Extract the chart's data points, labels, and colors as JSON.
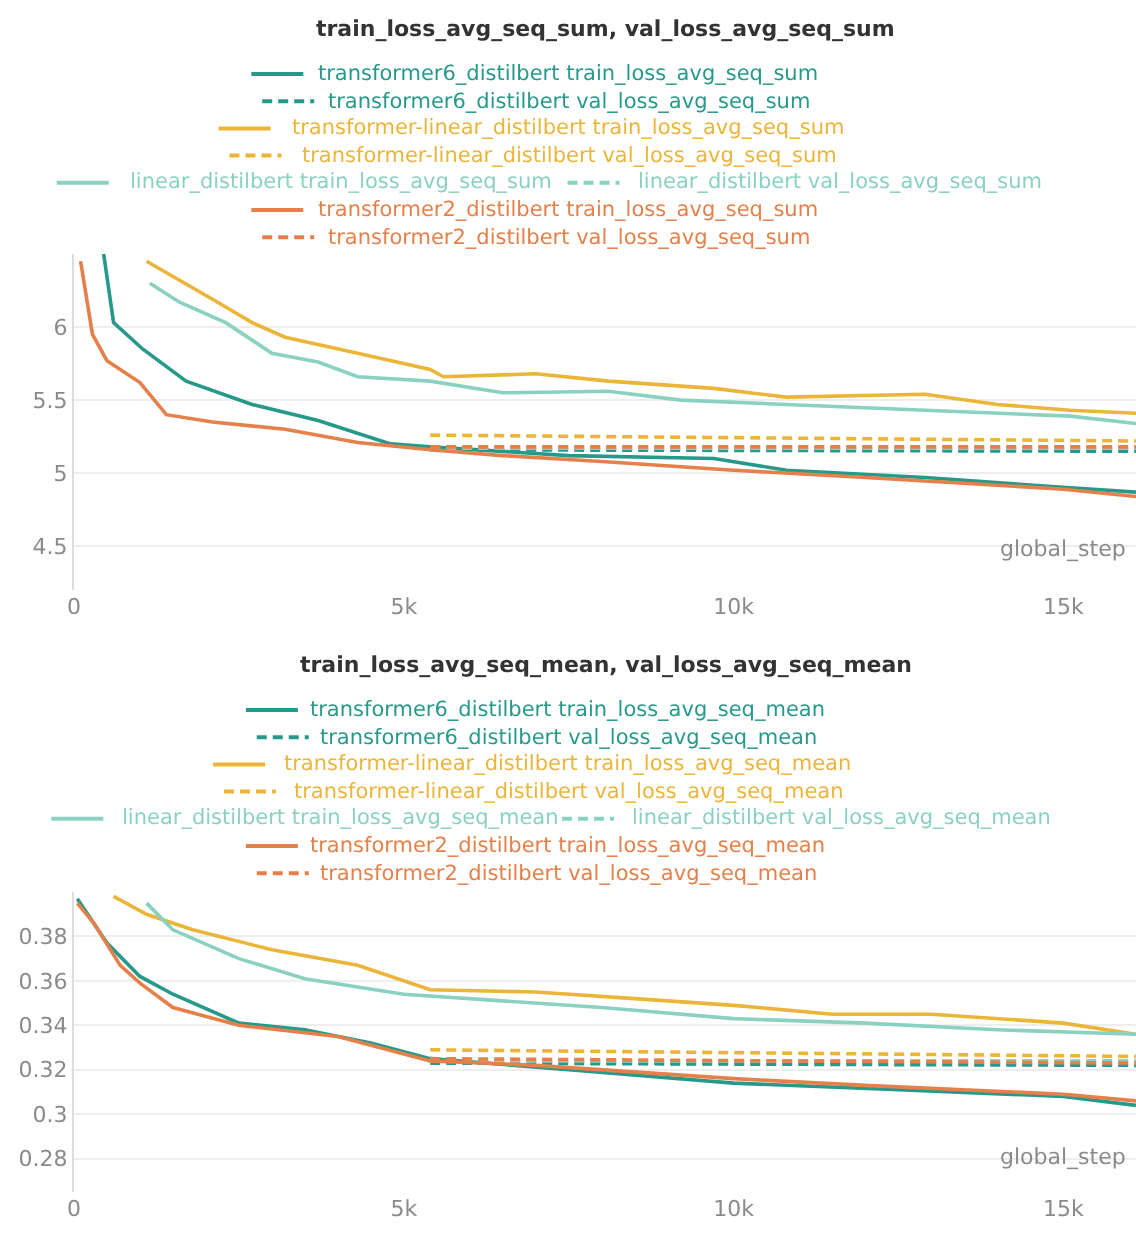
{
  "chart_data": [
    {
      "type": "line",
      "title": "train_loss_avg_seq_sum, val_loss_avg_seq_sum",
      "xlabel": "global_step",
      "legend": "top",
      "grid": "y",
      "xlim": [
        0,
        16100
      ],
      "xticks": [
        0,
        {
          "value": 5000,
          "label": "5k"
        },
        {
          "value": 10000,
          "label": "10k"
        },
        {
          "value": 15000,
          "label": "15k"
        }
      ],
      "ylim": [
        4.2,
        6.5
      ],
      "yticks": [
        4.5,
        5,
        5.5,
        6
      ],
      "series": [
        {
          "name": "transformer6_distilbert train_loss_avg_seq_sum",
          "color": "#27998a",
          "line_style": "solid",
          "x": [
            450,
            600,
            1040,
            1700,
            2700,
            3700,
            4800,
            5400,
            7500,
            9700,
            10800,
            12900,
            15100,
            16100
          ],
          "values": [
            6.5,
            6.03,
            5.85,
            5.63,
            5.47,
            5.36,
            5.2,
            5.18,
            5.12,
            5.1,
            5.02,
            4.97,
            4.9,
            4.87
          ]
        },
        {
          "name": "transformer6_distilbert val_loss_avg_seq_sum",
          "color": "#27998a",
          "line_style": "dashed",
          "x": [
            5400,
            16100
          ],
          "values": [
            5.16,
            5.15
          ]
        },
        {
          "name": "transformer-linear_distilbert train_loss_avg_seq_sum",
          "color": "#ebb53a",
          "line_style": "solid",
          "x": [
            1100,
            2100,
            2700,
            3200,
            4300,
            5400,
            5600,
            7000,
            8100,
            9700,
            10800,
            12900,
            14000,
            15100,
            16100
          ],
          "values": [
            6.45,
            6.19,
            6.03,
            5.93,
            5.82,
            5.71,
            5.66,
            5.68,
            5.63,
            5.58,
            5.52,
            5.54,
            5.47,
            5.43,
            5.41
          ]
        },
        {
          "name": "transformer-linear_distilbert val_loss_avg_seq_sum",
          "color": "#ebb53a",
          "line_style": "dashed",
          "x": [
            5400,
            16100
          ],
          "values": [
            5.26,
            5.22
          ]
        },
        {
          "name": "linear_distilbert train_loss_avg_seq_sum",
          "color": "#8ad1c2",
          "line_style": "solid",
          "x": [
            1150,
            1600,
            2300,
            3000,
            3700,
            4300,
            5400,
            6500,
            8100,
            9200,
            10800,
            12900,
            15100,
            16100
          ],
          "values": [
            6.3,
            6.17,
            6.03,
            5.82,
            5.76,
            5.66,
            5.63,
            5.55,
            5.56,
            5.5,
            5.47,
            5.43,
            5.39,
            5.34
          ]
        },
        {
          "name": "linear_distilbert val_loss_avg_seq_sum",
          "color": "#8ad1c2",
          "line_style": "dashed",
          "x": [
            5400,
            16100
          ],
          "values": [
            5.17,
            5.17
          ]
        },
        {
          "name": "transformer2_distilbert train_loss_avg_seq_sum",
          "color": "#e5804a",
          "line_style": "solid",
          "x": [
            100,
            280,
            500,
            1000,
            1400,
            2100,
            3200,
            4300,
            5400,
            6500,
            8000,
            10000,
            12000,
            15000,
            16100
          ],
          "values": [
            6.45,
            5.95,
            5.77,
            5.62,
            5.4,
            5.35,
            5.3,
            5.21,
            5.16,
            5.12,
            5.08,
            5.02,
            4.97,
            4.89,
            4.84
          ]
        },
        {
          "name": "transformer2_distilbert val_loss_avg_seq_sum",
          "color": "#e5804a",
          "line_style": "dashed",
          "x": [
            5400,
            16100
          ],
          "values": [
            5.18,
            5.18
          ]
        }
      ]
    },
    {
      "type": "line",
      "title": "train_loss_avg_seq_mean, val_loss_avg_seq_mean",
      "xlabel": "global_step",
      "legend": "top",
      "grid": "y",
      "xlim": [
        0,
        16100
      ],
      "xticks": [
        0,
        {
          "value": 5000,
          "label": "5k"
        },
        {
          "value": 10000,
          "label": "10k"
        },
        {
          "value": 15000,
          "label": "15k"
        }
      ],
      "ylim": [
        0.265,
        0.4
      ],
      "yticks": [
        0.28,
        {
          "value": 0.3,
          "label": "0.3"
        },
        0.32,
        0.34,
        0.36,
        0.38
      ],
      "series": [
        {
          "name": "transformer6_distilbert train_loss_avg_seq_mean",
          "color": "#27998a",
          "line_style": "solid",
          "x": [
            50,
            500,
            1000,
            1500,
            2500,
            3500,
            4500,
            5400,
            7500,
            10000,
            12500,
            15000,
            16100
          ],
          "values": [
            0.397,
            0.377,
            0.362,
            0.354,
            0.341,
            0.338,
            0.332,
            0.325,
            0.32,
            0.314,
            0.311,
            0.308,
            0.304
          ]
        },
        {
          "name": "transformer6_distilbert val_loss_avg_seq_mean",
          "color": "#27998a",
          "line_style": "dashed",
          "x": [
            5400,
            16100
          ],
          "values": [
            0.323,
            0.322
          ]
        },
        {
          "name": "transformer-linear_distilbert train_loss_avg_seq_mean",
          "color": "#ebb53a",
          "line_style": "solid",
          "x": [
            600,
            1100,
            1800,
            3000,
            4300,
            5400,
            7000,
            8500,
            10000,
            11500,
            13000,
            15000,
            16100
          ],
          "values": [
            0.398,
            0.39,
            0.383,
            0.374,
            0.367,
            0.356,
            0.355,
            0.352,
            0.349,
            0.345,
            0.345,
            0.341,
            0.336
          ]
        },
        {
          "name": "transformer-linear_distilbert val_loss_avg_seq_mean",
          "color": "#ebb53a",
          "line_style": "dashed",
          "x": [
            5400,
            16100
          ],
          "values": [
            0.329,
            0.326
          ]
        },
        {
          "name": "linear_distilbert train_loss_avg_seq_mean",
          "color": "#8ad1c2",
          "line_style": "solid",
          "x": [
            1100,
            1500,
            2500,
            3500,
            5000,
            6500,
            8000,
            10000,
            12000,
            14000,
            16100
          ],
          "values": [
            0.395,
            0.383,
            0.37,
            0.361,
            0.354,
            0.351,
            0.348,
            0.343,
            0.341,
            0.338,
            0.336
          ]
        },
        {
          "name": "linear_distilbert val_loss_avg_seq_mean",
          "color": "#8ad1c2",
          "line_style": "dashed",
          "x": [
            5400,
            16100
          ],
          "values": [
            0.324,
            0.324
          ]
        },
        {
          "name": "transformer2_distilbert train_loss_avg_seq_mean",
          "color": "#e5804a",
          "line_style": "solid",
          "x": [
            50,
            300,
            700,
            1000,
            1500,
            2500,
            4000,
            5400,
            7000,
            10000,
            12000,
            15000,
            16100
          ],
          "values": [
            0.395,
            0.386,
            0.367,
            0.359,
            0.348,
            0.34,
            0.335,
            0.324,
            0.322,
            0.316,
            0.313,
            0.309,
            0.306
          ]
        },
        {
          "name": "transformer2_distilbert val_loss_avg_seq_mean",
          "color": "#e5804a",
          "line_style": "dashed",
          "x": [
            5400,
            16100
          ],
          "values": [
            0.325,
            0.323
          ]
        }
      ]
    }
  ]
}
